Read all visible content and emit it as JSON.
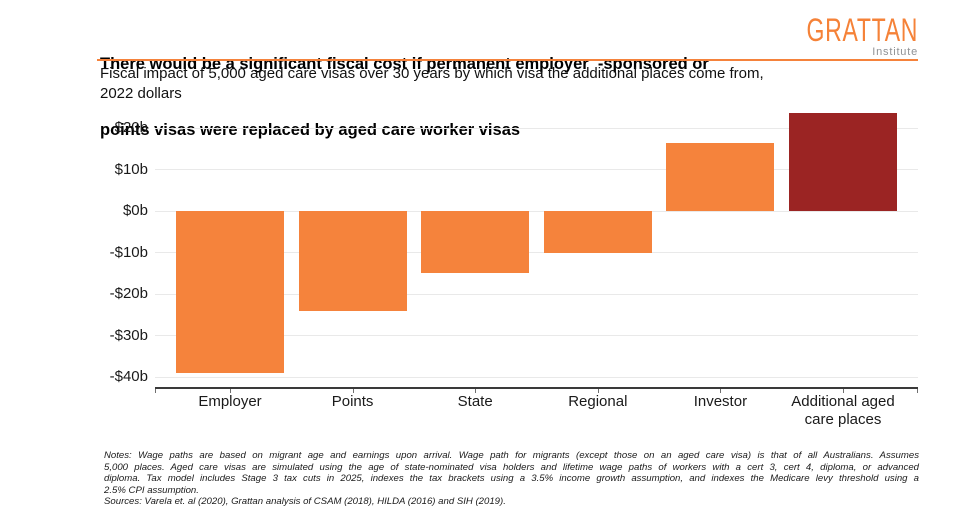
{
  "header": {
    "title_lines": [
      "There would be a significant fiscal cost if permanent employer  -sponsored or",
      "points visas were replaced by aged care worker visas"
    ],
    "logo": {
      "word": "GRATTAN",
      "subword": "Institute"
    }
  },
  "subtitle": {
    "lines": [
      "Fiscal impact of 5,000 aged care visas over 30 years by which visa the additional places come from,",
      "2022 dollars"
    ]
  },
  "chart_data": {
    "type": "bar",
    "title": "Fiscal impact of 5,000 aged care visas over 30 years by which visa the additional places come from, 2022 dollars",
    "categories": [
      "Employer",
      "Points",
      "State",
      "Regional",
      "Investor",
      "Additional aged care places"
    ],
    "values": [
      -39,
      -24,
      -15,
      -10,
      16.3,
      23.5
    ],
    "bar_colors": [
      "#F5833C",
      "#F5833C",
      "#F5833C",
      "#F5833C",
      "#F5833C",
      "#9B2423"
    ],
    "yticks": [
      {
        "value": 20,
        "label": "$20b"
      },
      {
        "value": 10,
        "label": "$10b"
      },
      {
        "value": 0,
        "label": "$0b"
      },
      {
        "value": -10,
        "label": "-$10b"
      },
      {
        "value": -20,
        "label": "-$20b"
      },
      {
        "value": -30,
        "label": "-$30b"
      },
      {
        "value": -40,
        "label": "-$40b"
      }
    ],
    "ylim": [
      -42.5,
      24.5
    ],
    "grid": true,
    "legend": "none",
    "xlabel": "",
    "ylabel": ""
  },
  "notes": {
    "lines": [
      "Notes: Wage paths are based on migrant age and earnings upon arrival. Wage path for migrants (except those on an aged care visa) is that of all Australians. Assumes",
      "5,000 places. Aged care visas are simulated using the age of state-nominated visa holders and lifetime wage paths of workers with a cert 3, cert 4, diploma, or advanced",
      "diploma. Tax model includes Stage 3 tax cuts in 2025, indexes the tax brackets using a 3.5% income growth assumption, and indexes the Medicare levy threshold using a",
      "2.5% CPI assumption."
    ],
    "sources": "Sources: Varela et. al (2020), Grattan analysis of CSAM (2018), HILDA (2016) and SIH (2019)."
  },
  "colors": {
    "accent_orange": "#F5833C",
    "dark_red": "#9B2423",
    "divider_orange": "#F5823B",
    "logo_orange": "#F58238",
    "logo_gray": "#8f9194",
    "gridline": "#e9e9e9",
    "axis": "#3a3a3a"
  }
}
